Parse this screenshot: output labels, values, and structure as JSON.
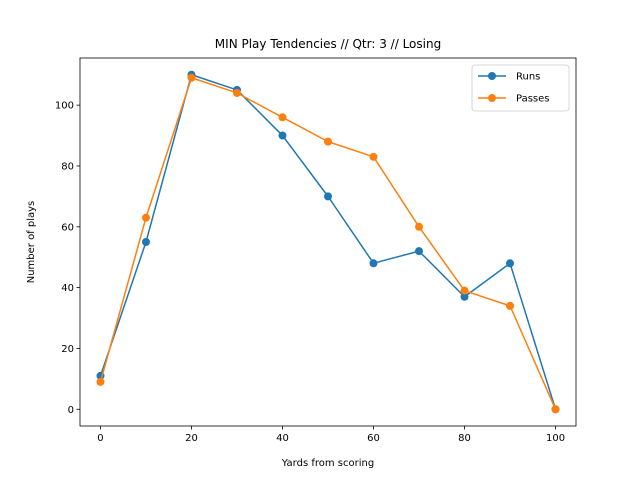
{
  "chart_data": {
    "type": "line",
    "title": "MIN Play Tendencies // Qtr: 3 // Losing",
    "xlabel": "Yards from scoring",
    "ylabel": "Number of plays",
    "x": [
      0,
      10,
      20,
      30,
      40,
      50,
      60,
      70,
      80,
      90,
      100
    ],
    "xlim": [
      -4.5,
      104.5
    ],
    "ylim": [
      -5.5,
      115.5
    ],
    "xticks": [
      0,
      20,
      40,
      60,
      80,
      100
    ],
    "yticks": [
      0,
      20,
      40,
      60,
      80,
      100
    ],
    "grid": false,
    "legend_position": "top-right",
    "series": [
      {
        "name": "Runs",
        "color": "#1f77b4",
        "marker": "circle",
        "values": [
          11,
          55,
          110,
          105,
          90,
          70,
          48,
          52,
          37,
          48,
          0
        ]
      },
      {
        "name": "Passes",
        "color": "#ff7f0e",
        "marker": "circle",
        "values": [
          9,
          63,
          109,
          104,
          96,
          88,
          83,
          60,
          39,
          34,
          0
        ]
      }
    ]
  }
}
